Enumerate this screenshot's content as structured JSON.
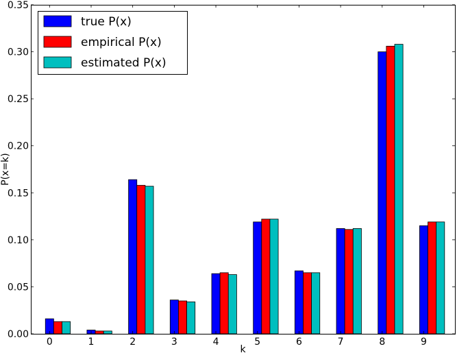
{
  "chart_data": {
    "type": "bar",
    "title": "",
    "xlabel": "k",
    "ylabel": "P(x=k)",
    "categories": [
      "0",
      "1",
      "2",
      "3",
      "4",
      "5",
      "6",
      "7",
      "8",
      "9"
    ],
    "series": [
      {
        "name": "true P(x)",
        "color": "#0000ff",
        "values": [
          0.016,
          0.004,
          0.164,
          0.036,
          0.064,
          0.119,
          0.067,
          0.112,
          0.3,
          0.115
        ]
      },
      {
        "name": "empirical P(x)",
        "color": "#ff0000",
        "values": [
          0.013,
          0.003,
          0.158,
          0.035,
          0.065,
          0.122,
          0.065,
          0.111,
          0.306,
          0.119
        ]
      },
      {
        "name": "estimated P(x)",
        "color": "#00bfbf",
        "values": [
          0.013,
          0.003,
          0.157,
          0.034,
          0.063,
          0.122,
          0.065,
          0.112,
          0.308,
          0.119
        ]
      }
    ],
    "ylim": [
      0,
      0.35
    ],
    "yticks": [
      "0.00",
      "0.05",
      "0.10",
      "0.15",
      "0.20",
      "0.25",
      "0.30",
      "0.35"
    ],
    "grid": false,
    "legend_position": "top-left"
  }
}
